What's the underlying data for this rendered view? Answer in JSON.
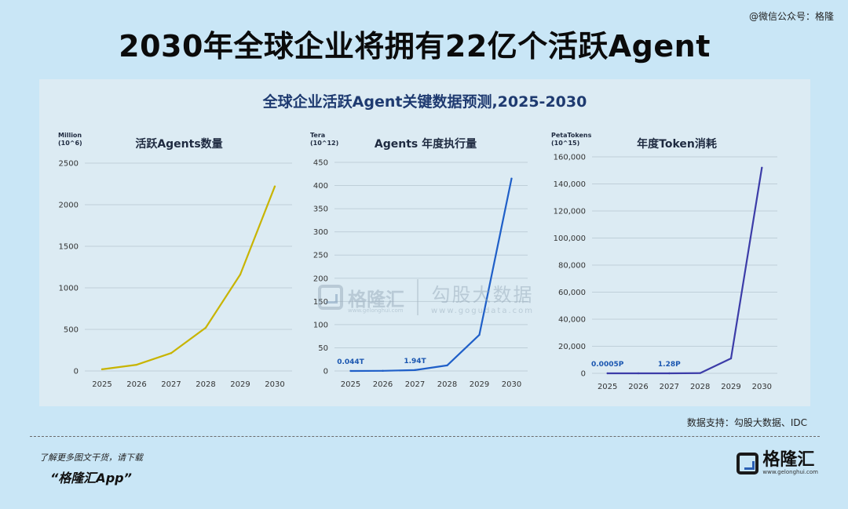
{
  "top_watermark": "@微信公众号：格隆",
  "title": "2030年全球企业将拥有22亿个活跃Agent",
  "panel_title": "全球企业活跃Agent关键数据预测,2025-2030",
  "colors": {
    "yellow": "#c8b400",
    "blue": "#1f5fc8",
    "purple": "#3c3ca8"
  },
  "chart_data": [
    {
      "type": "line",
      "title": "活跃Agents数量",
      "unit_line1": "Million",
      "unit_line2": "(10^6)",
      "x": [
        "2025",
        "2026",
        "2027",
        "2028",
        "2029",
        "2030"
      ],
      "values": [
        20,
        75,
        215,
        520,
        1160,
        2220
      ],
      "ylim": [
        0,
        2500
      ],
      "yticks": [
        "0",
        "500",
        "1000",
        "1500",
        "2000",
        "2500"
      ],
      "ytick_values": [
        0,
        500,
        1000,
        1500,
        2000,
        2500
      ],
      "labels": [],
      "color": "#c8b400",
      "grid": true
    },
    {
      "type": "line",
      "title": "Agents 年度执行量",
      "unit_line1": "Tera",
      "unit_line2": "(10^12)",
      "x": [
        "2025",
        "2026",
        "2027",
        "2028",
        "2029",
        "2030"
      ],
      "values": [
        0.044,
        0.3,
        1.94,
        12,
        78,
        415
      ],
      "ylim": [
        0,
        450
      ],
      "yticks": [
        "0",
        "50",
        "100",
        "150",
        "200",
        "250",
        "300",
        "350",
        "400",
        "450"
      ],
      "ytick_values": [
        0,
        50,
        100,
        150,
        200,
        250,
        300,
        350,
        400,
        450
      ],
      "labels": [
        {
          "index": 0,
          "text": "0.044T"
        },
        {
          "index": 2,
          "text": "1.94T"
        }
      ],
      "color": "#1f5fc8",
      "grid": true
    },
    {
      "type": "line",
      "title": "年度Token消耗",
      "unit_line1": "PetaTokens",
      "unit_line2": "(10^15)",
      "x": [
        "2025",
        "2026",
        "2027",
        "2028",
        "2029",
        "2030"
      ],
      "values": [
        0.0005,
        0.05,
        1.28,
        200,
        11000,
        152000
      ],
      "ylim": [
        0,
        160000
      ],
      "yticks": [
        "0",
        "20,000",
        "40,000",
        "60,000",
        "80,000",
        "100,000",
        "120,000",
        "140,000",
        "160,000"
      ],
      "ytick_values": [
        0,
        20000,
        40000,
        60000,
        80000,
        100000,
        120000,
        140000,
        160000
      ],
      "labels": [
        {
          "index": 0,
          "text": "0.0005P"
        },
        {
          "index": 2,
          "text": "1.28P"
        }
      ],
      "color": "#3c3ca8",
      "grid": true
    }
  ],
  "watermark": {
    "name": "格隆汇",
    "url": "www.gelonghui.com",
    "partner_name": "勾股大数据",
    "partner_url": "www.gogudata.com"
  },
  "source": "数据支持：勾股大数据、IDC",
  "footer": {
    "note": "了解更多图文干货，请下载",
    "app": "“格隆汇App”"
  },
  "logo": {
    "name": "格隆汇",
    "url": "www.gelonghui.com"
  }
}
